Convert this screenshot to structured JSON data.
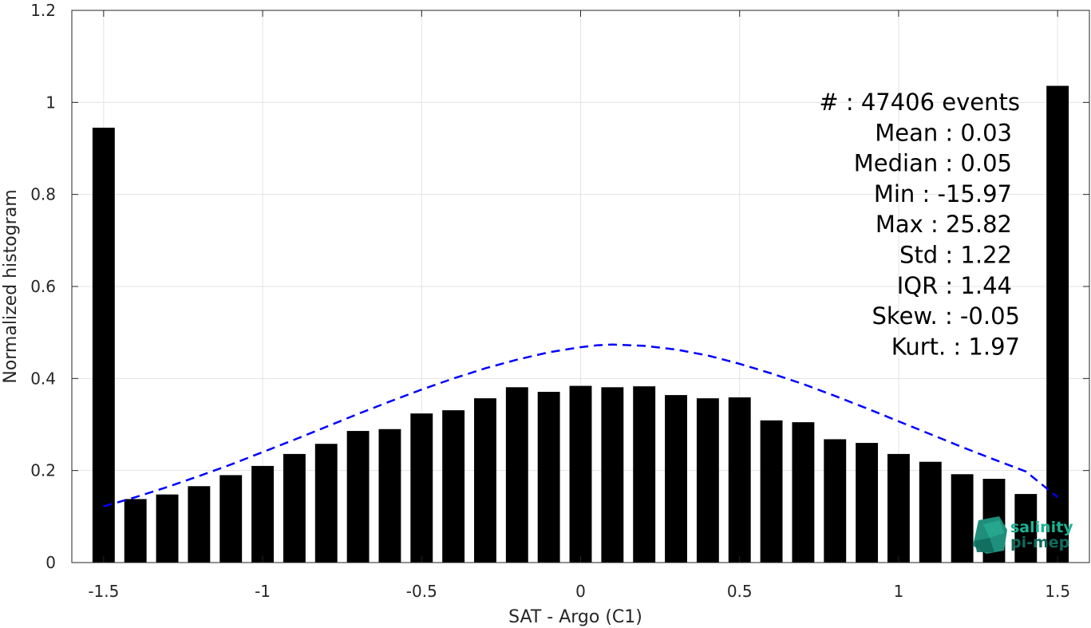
{
  "chart_data": {
    "type": "bar",
    "xlabel": "SAT - Argo (C1)",
    "ylabel": "Normalized histogram",
    "xlim": [
      -1.6,
      1.6
    ],
    "ylim": [
      0,
      1.2
    ],
    "xticks": [
      -1.5,
      -1,
      -0.5,
      0,
      0.5,
      1,
      1.5
    ],
    "xtick_labels": [
      "-1.5",
      "-1",
      "-0.5",
      "0",
      "0.5",
      "1",
      "1.5"
    ],
    "yticks": [
      0,
      0.2,
      0.4,
      0.6,
      0.8,
      1,
      1.2
    ],
    "ytick_labels": [
      "0",
      "0.2",
      "0.4",
      "0.6",
      "0.8",
      "1",
      "1.2"
    ],
    "grid": true,
    "bar_color": "#000000",
    "bar_width": 0.07,
    "bars": {
      "x": [
        -1.5,
        -1.4,
        -1.3,
        -1.2,
        -1.1,
        -1.0,
        -0.9,
        -0.8,
        -0.7,
        -0.6,
        -0.5,
        -0.4,
        -0.3,
        -0.2,
        -0.1,
        0.0,
        0.1,
        0.2,
        0.3,
        0.4,
        0.5,
        0.6,
        0.7,
        0.8,
        0.9,
        1.0,
        1.1,
        1.2,
        1.3,
        1.4,
        1.5
      ],
      "values": [
        0.945,
        0.138,
        0.148,
        0.166,
        0.19,
        0.21,
        0.236,
        0.258,
        0.286,
        0.29,
        0.324,
        0.331,
        0.357,
        0.381,
        0.371,
        0.384,
        0.381,
        0.383,
        0.364,
        0.357,
        0.359,
        0.309,
        0.305,
        0.268,
        0.26,
        0.236,
        0.219,
        0.192,
        0.182,
        0.149,
        1.036
      ]
    },
    "fit_curve": {
      "style": "dashed",
      "color": "#0000ff",
      "x": [
        -1.5,
        -1.4,
        -1.3,
        -1.2,
        -1.1,
        -1.0,
        -0.9,
        -0.8,
        -0.7,
        -0.6,
        -0.5,
        -0.4,
        -0.3,
        -0.2,
        -0.1,
        0.0,
        0.05,
        0.1,
        0.2,
        0.3,
        0.4,
        0.5,
        0.6,
        0.7,
        0.8,
        0.9,
        1.0,
        1.1,
        1.2,
        1.3,
        1.4,
        1.5
      ],
      "y": [
        0.122,
        0.142,
        0.164,
        0.188,
        0.213,
        0.24,
        0.267,
        0.295,
        0.323,
        0.35,
        0.376,
        0.4,
        0.422,
        0.441,
        0.457,
        0.468,
        0.472,
        0.474,
        0.471,
        0.463,
        0.45,
        0.432,
        0.411,
        0.388,
        0.362,
        0.335,
        0.307,
        0.279,
        0.251,
        0.224,
        0.198,
        0.142
      ]
    },
    "annotations": [
      "#  : 47406 events",
      "Mean : 0.03",
      "Median : 0.05",
      "Min : -15.97",
      "Max : 25.82",
      "Std : 1.22",
      "IQR : 1.44",
      "Skew. : -0.05",
      "Kurt. : 1.97"
    ]
  },
  "logo": {
    "line1": "salinity",
    "line2": "pi-mep",
    "color_top": "#1ab394",
    "color_bottom": "#0f6b5c"
  }
}
